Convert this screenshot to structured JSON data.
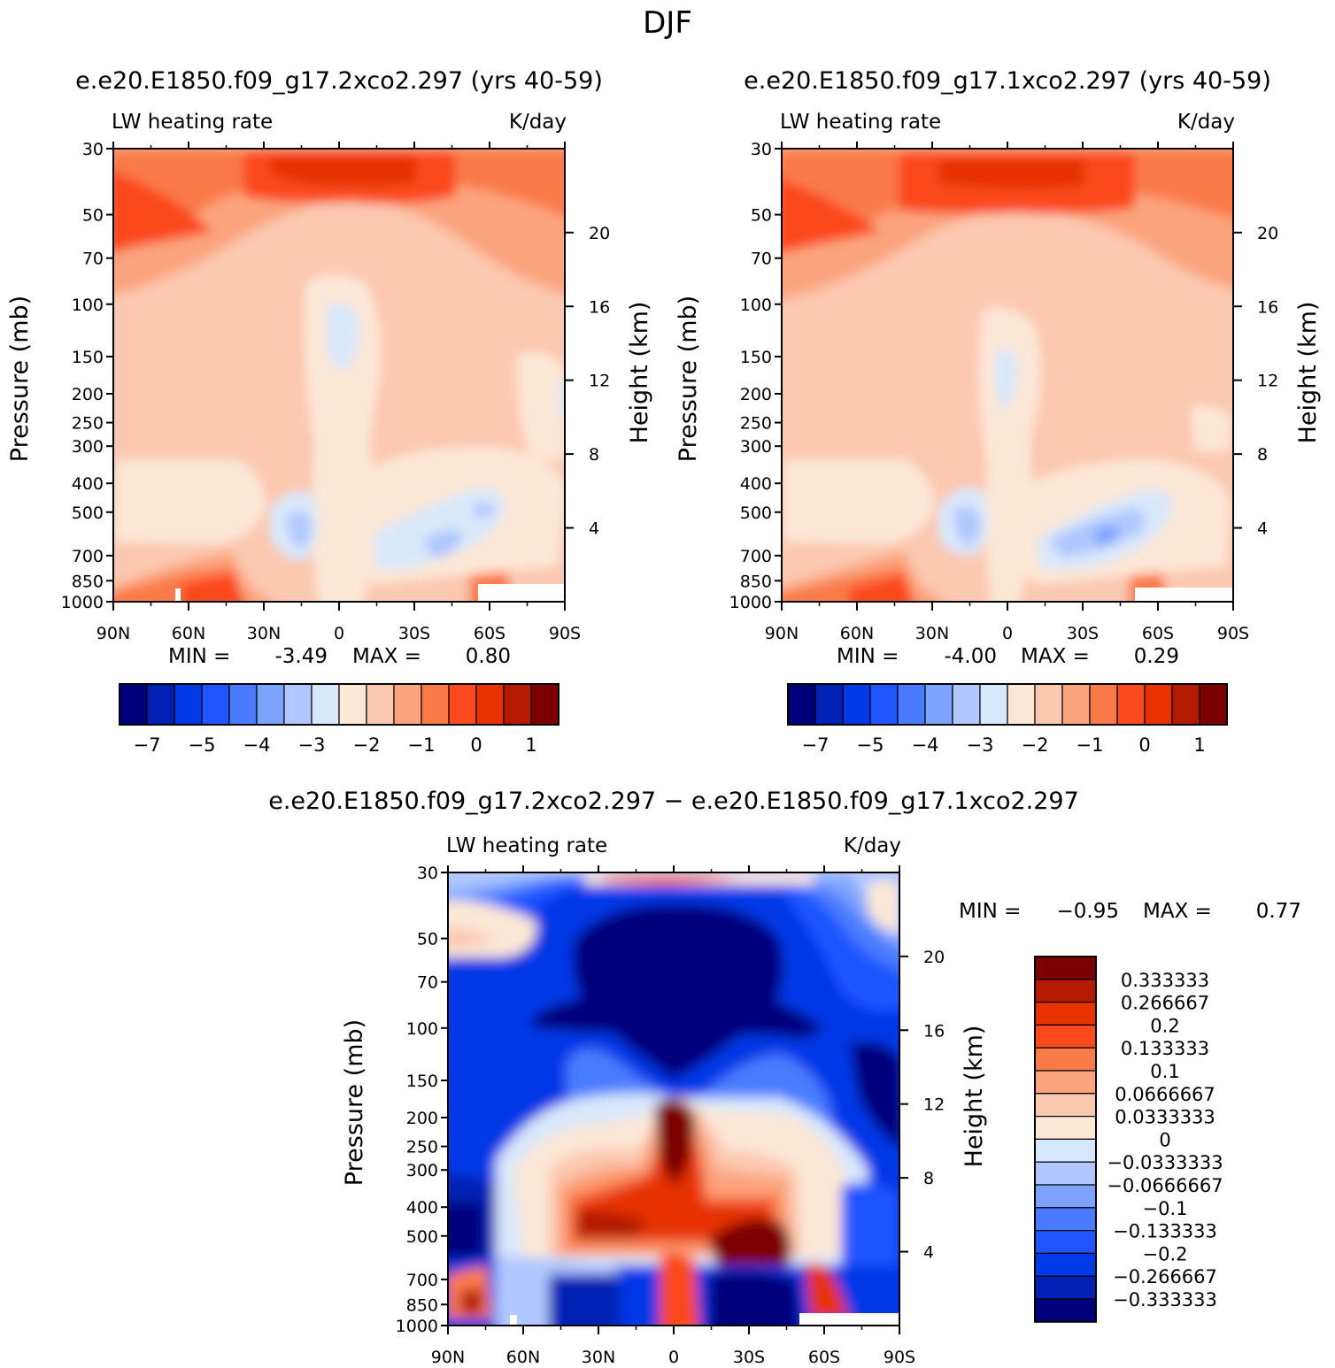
{
  "figure": {
    "title": "DJF"
  },
  "colors": {
    "palette16": [
      "#00007d",
      "#0020b4",
      "#0039e6",
      "#1f54ff",
      "#4a7bff",
      "#7ea3ff",
      "#b0c8ff",
      "#d8e8fb",
      "#fde8d6",
      "#fbc8b0",
      "#fba47e",
      "#fb7a4a",
      "#fb4a1e",
      "#e63300",
      "#b41a00",
      "#7d0000"
    ]
  },
  "chart_data": [
    {
      "type": "heatmap",
      "id": "panel1",
      "title": "e.e20.E1850.f09_g17.2xco2.297 (yrs 40-59)",
      "left_label": "LW heating rate",
      "right_label": "K/day",
      "xlabel": "",
      "ylabel": "Pressure (mb)",
      "y2label": "Height (km)",
      "x_ticks": [
        "90N",
        "60N",
        "30N",
        "0",
        "30S",
        "60S",
        "90S"
      ],
      "y_ticks": [
        30,
        50,
        70,
        100,
        150,
        200,
        250,
        300,
        400,
        500,
        700,
        850,
        1000
      ],
      "y_tick_labels": [
        "30",
        "50",
        "70",
        "100",
        "150",
        "200",
        "250",
        "300",
        "400",
        "500",
        "700",
        "850",
        "1000"
      ],
      "y2_ticks": [
        20,
        16,
        12,
        8,
        4
      ],
      "ylim": [
        30,
        1000
      ],
      "xlim": [
        90,
        -90
      ],
      "min_label": "MIN =",
      "min_value": "-3.49",
      "max_label": "MAX =",
      "max_value": "0.80",
      "levels": [
        -7.5,
        -7,
        -6.5,
        -5.5,
        -5,
        -4.5,
        -3.5,
        -3,
        -2.5,
        -2,
        -1.5,
        -1,
        -0.5,
        0,
        0.5,
        1
      ],
      "colorbar_labels": [
        "−7",
        "−5",
        "−4",
        "−3",
        "−2",
        "−1",
        "0",
        "1"
      ]
    },
    {
      "type": "heatmap",
      "id": "panel2",
      "title": "e.e20.E1850.f09_g17.1xco2.297 (yrs 40-59)",
      "left_label": "LW heating rate",
      "right_label": "K/day",
      "xlabel": "",
      "ylabel": "Pressure (mb)",
      "y2label": "Height (km)",
      "x_ticks": [
        "90N",
        "60N",
        "30N",
        "0",
        "30S",
        "60S",
        "90S"
      ],
      "y_ticks": [
        30,
        50,
        70,
        100,
        150,
        200,
        250,
        300,
        400,
        500,
        700,
        850,
        1000
      ],
      "y_tick_labels": [
        "30",
        "50",
        "70",
        "100",
        "150",
        "200",
        "250",
        "300",
        "400",
        "500",
        "700",
        "850",
        "1000"
      ],
      "y2_ticks": [
        20,
        16,
        12,
        8,
        4
      ],
      "ylim": [
        30,
        1000
      ],
      "xlim": [
        90,
        -90
      ],
      "min_label": "MIN =",
      "min_value": "-4.00",
      "max_label": "MAX =",
      "max_value": "0.29",
      "levels": [
        -7.5,
        -7,
        -6.5,
        -5.5,
        -5,
        -4.5,
        -3.5,
        -3,
        -2.5,
        -2,
        -1.5,
        -1,
        -0.5,
        0,
        0.5,
        1
      ],
      "colorbar_labels": [
        "−7",
        "−5",
        "−4",
        "−3",
        "−2",
        "−1",
        "0",
        "1"
      ]
    },
    {
      "type": "heatmap",
      "id": "diff",
      "title": "e.e20.E1850.f09_g17.2xco2.297 − e.e20.E1850.f09_g17.1xco2.297",
      "left_label": "LW heating rate",
      "right_label": "K/day",
      "xlabel": "",
      "ylabel": "Pressure (mb)",
      "y2label": "Height (km)",
      "x_ticks": [
        "90N",
        "60N",
        "30N",
        "0",
        "30S",
        "60S",
        "90S"
      ],
      "y_ticks": [
        30,
        50,
        70,
        100,
        150,
        200,
        250,
        300,
        400,
        500,
        700,
        850,
        1000
      ],
      "y_tick_labels": [
        "30",
        "50",
        "70",
        "100",
        "150",
        "200",
        "250",
        "300",
        "400",
        "500",
        "700",
        "850",
        "1000"
      ],
      "y2_ticks": [
        20,
        16,
        12,
        8,
        4
      ],
      "ylim": [
        30,
        1000
      ],
      "xlim": [
        90,
        -90
      ],
      "min_label": "MIN =",
      "min_value": "−0.95",
      "max_label": "MAX =",
      "max_value": "0.77",
      "levels": [
        -0.333333,
        -0.266667,
        -0.2,
        -0.133333,
        -0.1,
        -0.0666667,
        -0.0333333,
        0,
        0.0333333,
        0.0666667,
        0.1,
        0.133333,
        0.2,
        0.266667,
        0.333333
      ],
      "colorbar_labels": [
        "0.333333",
        "0.266667",
        "0.2",
        "0.133333",
        "0.1",
        "0.0666667",
        "0.0333333",
        "0",
        "−0.0333333",
        "−0.0666667",
        "−0.1",
        "−0.133333",
        "−0.2",
        "−0.266667",
        "−0.333333"
      ]
    }
  ]
}
